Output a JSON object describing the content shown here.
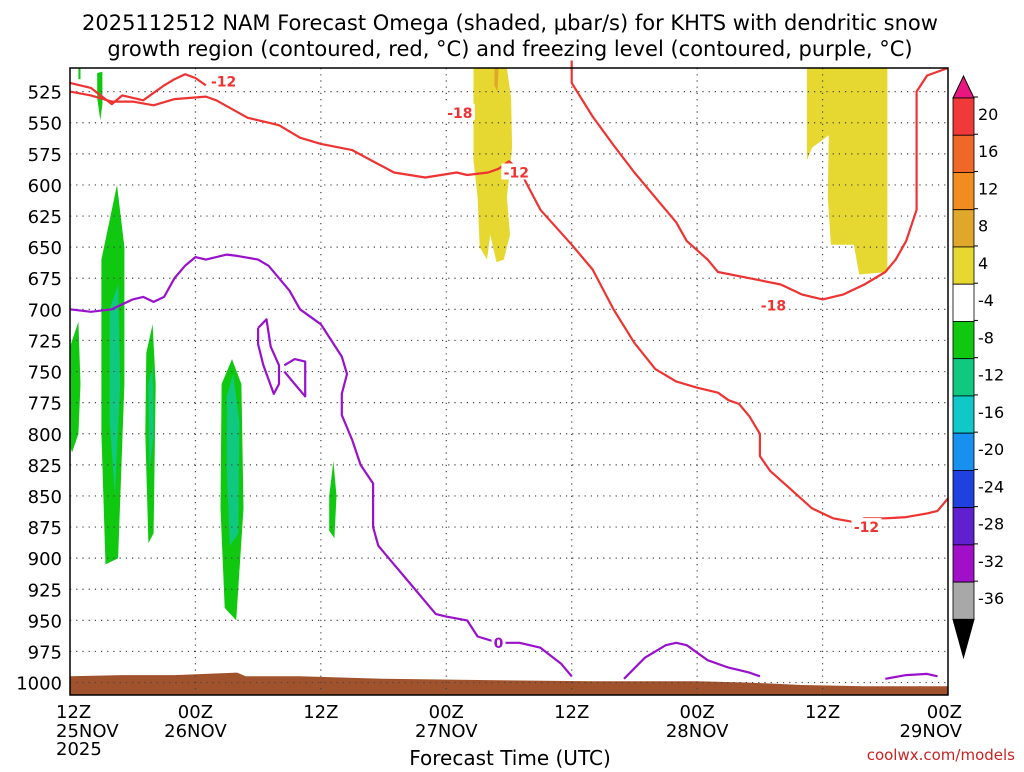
{
  "title_line1": "2025112512 NAM Forecast Omega (shaded, μbar/s) for KHTS with dendritic snow",
  "title_line2": "growth region (contoured, red, °C) and freezing level (contoured, purple, °C)",
  "xlabel": "Forecast Time (UTC)",
  "watermark": "coolwx.com/models",
  "chart_data": {
    "type": "time-height cross section",
    "y_axis": {
      "label": "",
      "ticks": [
        "525",
        "550",
        "575",
        "600",
        "625",
        "650",
        "675",
        "700",
        "725",
        "750",
        "775",
        "800",
        "825",
        "850",
        "875",
        "900",
        "925",
        "950",
        "975",
        "1000"
      ],
      "range_hPa": [
        506,
        1010
      ]
    },
    "x_axis": {
      "ticks": [
        {
          "hour": 0,
          "line1": "12Z",
          "line2": "25NOV",
          "line3": "2025"
        },
        {
          "hour": 12,
          "line1": "00Z",
          "line2": "26NOV",
          "line3": ""
        },
        {
          "hour": 24,
          "line1": "12Z",
          "line2": "",
          "line3": ""
        },
        {
          "hour": 36,
          "line1": "00Z",
          "line2": "27NOV",
          "line3": ""
        },
        {
          "hour": 48,
          "line1": "12Z",
          "line2": "",
          "line3": ""
        },
        {
          "hour": 60,
          "line1": "00Z",
          "line2": "28NOV",
          "line3": ""
        },
        {
          "hour": 72,
          "line1": "12Z",
          "line2": "",
          "line3": ""
        },
        {
          "hour": 84,
          "line1": "00Z",
          "line2": "29NOV",
          "line3": ""
        }
      ],
      "range_hours": [
        0,
        84
      ]
    },
    "grid": true,
    "colorbar": {
      "labels": [
        "20",
        "16",
        "12",
        "8",
        "4",
        "-4",
        "-8",
        "-12",
        "-16",
        "-20",
        "-24",
        "-28",
        "-32",
        "-36"
      ],
      "colors": [
        "#e8177f",
        "#f03a3a",
        "#f06828",
        "#f08c20",
        "#e0a82a",
        "#e6d830",
        "#ffffff",
        "#10c810",
        "#10c880",
        "#10c8c8",
        "#1890f0",
        "#2040e0",
        "#6020d0",
        "#a010c8",
        "#a8a8a8",
        "#000000"
      ]
    },
    "contour_labels": [
      {
        "text": "-12",
        "color": "#ee3333"
      },
      {
        "text": "-18",
        "color": "#ee3333"
      },
      {
        "text": "-12",
        "color": "#ee3333"
      },
      {
        "text": "-18",
        "color": "#ee3333"
      },
      {
        "text": "-12",
        "color": "#ee3333"
      },
      {
        "text": "0",
        "color": "#9911cc"
      }
    ],
    "series": [
      {
        "kind": "red_contour_-12_upper",
        "color": "#ee3333",
        "points": [
          [
            0,
            518
          ],
          [
            2,
            522
          ],
          [
            4,
            535
          ],
          [
            5,
            528
          ],
          [
            7,
            532
          ],
          [
            9,
            520
          ],
          [
            10,
            515
          ],
          [
            11,
            511
          ],
          [
            12,
            514
          ],
          [
            13,
            520
          ]
        ]
      },
      {
        "kind": "red_contour_-18",
        "color": "#ee3333",
        "points": [
          [
            0,
            525
          ],
          [
            2,
            528
          ],
          [
            4,
            533
          ],
          [
            6,
            533
          ],
          [
            8,
            536
          ],
          [
            10,
            531
          ],
          [
            13,
            529
          ],
          [
            14,
            532
          ],
          [
            17,
            546
          ],
          [
            20,
            552
          ],
          [
            22,
            562
          ],
          [
            24,
            567
          ],
          [
            27,
            572
          ],
          [
            31,
            590
          ],
          [
            34,
            594
          ],
          [
            37,
            590
          ],
          [
            38,
            592
          ],
          [
            40,
            590
          ],
          [
            41,
            587
          ],
          [
            42,
            581
          ],
          [
            43,
            588
          ],
          [
            45,
            620
          ],
          [
            48,
            648
          ],
          [
            50,
            668
          ],
          [
            52,
            700
          ],
          [
            54,
            727
          ],
          [
            56,
            748
          ],
          [
            58,
            758
          ],
          [
            60,
            763
          ],
          [
            62,
            767
          ],
          [
            63,
            773
          ],
          [
            64,
            776
          ],
          [
            65,
            786
          ],
          [
            66,
            800
          ],
          [
            66,
            818
          ],
          [
            67,
            830
          ],
          [
            69,
            845
          ],
          [
            71,
            860
          ],
          [
            73,
            868
          ],
          [
            75,
            871
          ],
          [
            76,
            868
          ],
          [
            78,
            868
          ],
          [
            80,
            867
          ],
          [
            82,
            864
          ],
          [
            83,
            862
          ],
          [
            84,
            852
          ]
        ]
      },
      {
        "kind": "red_contour_-12_lower",
        "color": "#ee3333",
        "points": [
          [
            48,
            500
          ],
          [
            48,
            518
          ],
          [
            50,
            545
          ],
          [
            52,
            568
          ],
          [
            54,
            590
          ],
          [
            56,
            610
          ],
          [
            58,
            630
          ],
          [
            59,
            645
          ],
          [
            61,
            660
          ],
          [
            62,
            670
          ],
          [
            65,
            675
          ],
          [
            68,
            680
          ],
          [
            70,
            688
          ],
          [
            72,
            692
          ],
          [
            74,
            688
          ],
          [
            76,
            680
          ],
          [
            78,
            670
          ],
          [
            79,
            660
          ],
          [
            80,
            645
          ],
          [
            81,
            620
          ],
          [
            81,
            580
          ],
          [
            81,
            525
          ],
          [
            82,
            512
          ],
          [
            84,
            506
          ]
        ]
      }
    ]
  }
}
